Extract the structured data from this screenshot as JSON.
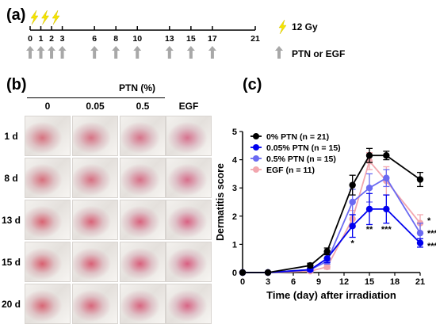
{
  "panel_a": {
    "label": "(a)",
    "days": [
      "0",
      "1",
      "2",
      "3",
      "6",
      "8",
      "10",
      "13",
      "15",
      "17",
      "21"
    ],
    "irradiation_days": [
      0,
      1,
      2
    ],
    "treatment_days": [
      0,
      1,
      2,
      3,
      6,
      8,
      10,
      13,
      15,
      17
    ],
    "legend_irradiation": "12 Gy",
    "legend_treatment": "PTN or EGF",
    "colors": {
      "bolt": "#f5e400",
      "arrow": "#a8a8a8"
    }
  },
  "panel_b": {
    "label": "(b)",
    "group_header": "PTN (%)",
    "columns": [
      "0",
      "0.05",
      "0.5",
      "EGF"
    ],
    "rows": [
      "1 d",
      "8 d",
      "13 d",
      "15 d",
      "20 d"
    ]
  },
  "panel_c": {
    "label": "(c)",
    "chart_data": {
      "type": "line",
      "xlabel": "Time (day) after irradiation",
      "ylabel": "Dermatitis score",
      "x": [
        0,
        3,
        6,
        8,
        10,
        13,
        15,
        17,
        21
      ],
      "x_ticks": [
        "0",
        "3",
        "6",
        "9",
        "12",
        "15",
        "18",
        "21"
      ],
      "y_ticks": [
        "0",
        "1",
        "2",
        "3",
        "4",
        "5"
      ],
      "xlim": [
        0,
        21
      ],
      "ylim": [
        0,
        5
      ],
      "grid": false,
      "legend": "top-left",
      "series": [
        {
          "name": "0% PTN (n = 21)",
          "color": "#000000",
          "values": [
            0,
            0,
            0.25,
            0.75,
            3.1,
            4.15,
            4.15,
            3.3
          ],
          "x": [
            0,
            3,
            8,
            10,
            13,
            15,
            17,
            21
          ],
          "errors": [
            0,
            0,
            0.08,
            0.12,
            0.35,
            0.25,
            0.15,
            0.25
          ]
        },
        {
          "name": "0.05% PTN (n = 15)",
          "color": "#0000ee",
          "values": [
            0,
            0,
            0.1,
            0.5,
            1.65,
            2.25,
            2.25,
            1.05
          ],
          "x": [
            0,
            3,
            8,
            10,
            13,
            15,
            17,
            21
          ],
          "errors": [
            0,
            0,
            0.05,
            0.15,
            0.4,
            0.55,
            0.5,
            0.15
          ]
        },
        {
          "name": "0.5% PTN (n = 15)",
          "color": "#6a6af2",
          "values": [
            0,
            0,
            0.1,
            0.4,
            2.5,
            3.0,
            3.35,
            1.4
          ],
          "x": [
            0,
            3,
            8,
            10,
            13,
            15,
            17,
            21
          ],
          "errors": [
            0,
            0,
            0.05,
            0.1,
            0.45,
            0.5,
            0.3,
            0.35
          ]
        },
        {
          "name": "EGF (n = 11)",
          "color": "#f2a6ae",
          "values": [
            0,
            0,
            0.05,
            0.2,
            1.9,
            3.95,
            3.25,
            1.75
          ],
          "x": [
            0,
            3,
            8,
            10,
            13,
            15,
            17,
            21
          ],
          "errors": [
            0,
            0,
            0.05,
            0.08,
            0.3,
            0.3,
            0.5,
            0.3
          ]
        }
      ],
      "annotations": [
        {
          "x": 13,
          "y": 1.05,
          "text": "*"
        },
        {
          "x": 15,
          "y": 1.55,
          "text": "**"
        },
        {
          "x": 17,
          "y": 1.55,
          "text": "***"
        },
        {
          "x": 21.9,
          "y": 1.85,
          "text": "*"
        },
        {
          "x": 21.9,
          "y": 1.4,
          "text": "***"
        },
        {
          "x": 21.9,
          "y": 0.95,
          "text": "***"
        }
      ]
    }
  }
}
